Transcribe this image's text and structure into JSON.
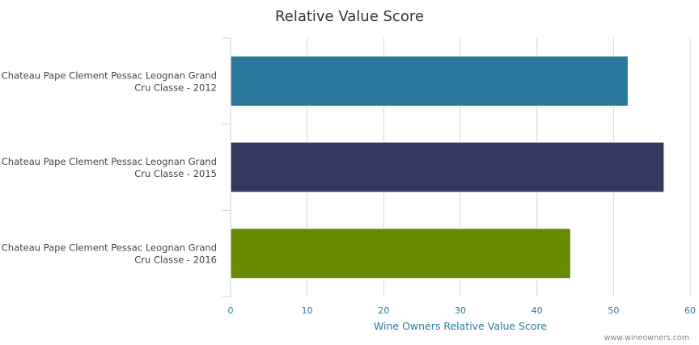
{
  "chart_data": {
    "type": "bar",
    "orientation": "horizontal",
    "title": "Relative Value Score",
    "categories": [
      [
        "Chateau Pape Clement Pessac Leognan Grand",
        "Cru Classe - 2012"
      ],
      [
        "Chateau Pape Clement Pessac Leognan Grand",
        "Cru Classe - 2015"
      ],
      [
        "Chateau Pape Clement Pessac Leognan Grand",
        "Cru Classe - 2016"
      ]
    ],
    "values": [
      51.9,
      56.6,
      44.4
    ],
    "colors": [
      "#2b789d",
      "#343863",
      "#678a00"
    ],
    "xlabel": "Wine Owners Relative Value Score",
    "xlim": [
      0,
      60
    ],
    "xticks": [
      "0",
      "10",
      "20",
      "30",
      "40",
      "50",
      "60"
    ],
    "grid": true,
    "credit": "www.wineowners.com"
  }
}
